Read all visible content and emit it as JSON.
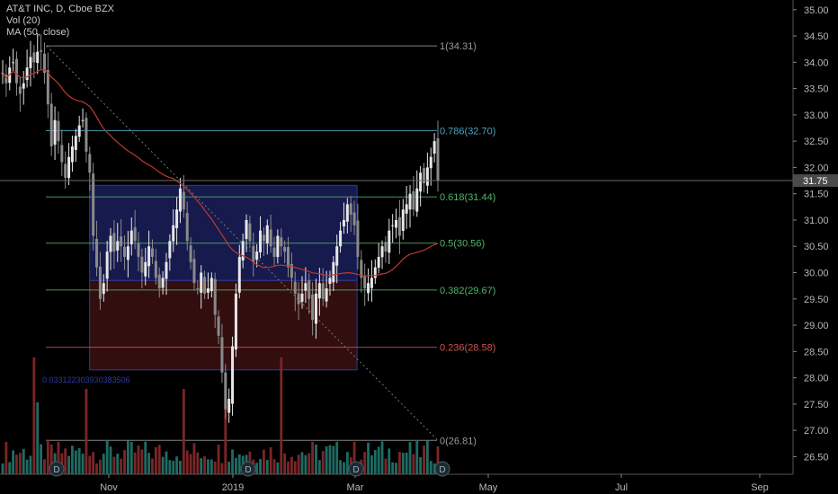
{
  "legend": {
    "symbol_line": "AT&T INC, D, Cboe BZX",
    "volume_line": "Vol (20)",
    "ma_line": "MA (50, close)"
  },
  "colors": {
    "background": "#000000",
    "up_candle": "#e6e6e6",
    "down_candle": "#8a8a8a",
    "volume_up": "#1f6b63",
    "volume_down": "#7a2626",
    "ma_line": "#c0392b",
    "upper_box": "#1a1f5a",
    "lower_box": "#3b1010",
    "price_label_bg": "#4a4a4a"
  },
  "chart_data": {
    "type": "candlestick",
    "title": "AT&T INC, D, Cboe BZX",
    "x_ticks": [
      "Nov",
      "2019",
      "Mar",
      "May",
      "Jul",
      "Sep"
    ],
    "y_ticks": [
      "35.00",
      "34.50",
      "34.00",
      "33.50",
      "33.00",
      "32.50",
      "32.00",
      "31.50",
      "31.00",
      "30.50",
      "30.00",
      "29.50",
      "29.00",
      "28.50",
      "28.00",
      "27.50",
      "27.00",
      "26.50"
    ],
    "ylim": [
      26.2,
      35.15
    ],
    "current_price": "31.75",
    "current_price_value": 31.75,
    "fib_levels": [
      {
        "label": "1(34.31)",
        "value": 34.31,
        "color": "#9a9a9a"
      },
      {
        "label": "0.786(32.70)",
        "value": 32.7,
        "color": "#4aa3c2"
      },
      {
        "label": "0.618(31.44)",
        "value": 31.44,
        "color": "#4fb36b"
      },
      {
        "label": "0.5(30.56)",
        "value": 30.56,
        "color": "#4fb36b"
      },
      {
        "label": "0.382(29.67)",
        "value": 29.67,
        "color": "#4fb36b"
      },
      {
        "label": "0.236(28.58)",
        "value": 28.58,
        "color": "#d0524a"
      },
      {
        "label": "0(26.81)",
        "value": 26.81,
        "color": "#9a9a9a"
      }
    ],
    "box_annotation": "0.033122303930383506",
    "dividend_markers": [
      "D",
      "D",
      "D",
      "D"
    ],
    "close": [
      33.8,
      33.6,
      33.9,
      34.0,
      33.6,
      33.4,
      33.6,
      33.9,
      34.1,
      34.0,
      34.2,
      34.2,
      33.8,
      33.2,
      32.4,
      32.9,
      32.5,
      32.1,
      31.8,
      32.2,
      32.4,
      32.6,
      32.8,
      32.9,
      32.3,
      31.9,
      30.7,
      30.1,
      29.5,
      29.8,
      30.4,
      30.7,
      30.4,
      30.6,
      30.5,
      30.3,
      30.5,
      30.8,
      30.6,
      30.3,
      30.0,
      30.2,
      30.5,
      30.3,
      29.9,
      29.7,
      29.9,
      30.2,
      30.6,
      30.9,
      31.2,
      31.6,
      31.2,
      30.6,
      30.2,
      29.8,
      29.7,
      30.0,
      29.6,
      29.7,
      29.9,
      29.2,
      28.8,
      28.1,
      27.4,
      27.6,
      28.6,
      29.6,
      30.3,
      30.6,
      31.0,
      30.6,
      30.2,
      30.4,
      30.8,
      30.6,
      30.9,
      30.5,
      30.3,
      30.7,
      30.5,
      30.4,
      30.1,
      29.9,
      29.6,
      29.4,
      29.6,
      29.8,
      29.5,
      29.1,
      29.6,
      29.8,
      29.5,
      29.7,
      29.9,
      30.2,
      30.5,
      30.8,
      31.0,
      31.3,
      31.1,
      30.9,
      30.3,
      29.9,
      29.7,
      29.8,
      29.9,
      30.1,
      30.3,
      30.5,
      30.4,
      30.8,
      30.9,
      31.0,
      30.7,
      31.2,
      31.3,
      31.5,
      31.2,
      31.6,
      31.9,
      31.7,
      32.0,
      32.2,
      32.5,
      31.75
    ]
  }
}
